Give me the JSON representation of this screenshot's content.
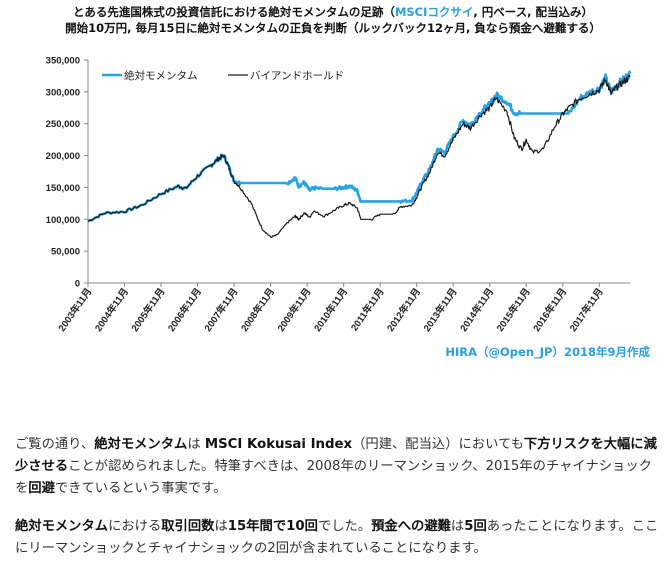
{
  "title": {
    "line1_prefix": "とある先進国株式の投資信託における絶対モメンタムの足跡（",
    "line1_accent": "MSCIコクサイ",
    "line1_suffix": ", 円ベース, 配当込み）",
    "line2": "開始10万円, 毎月15日に絶対モメンタムの正負を判断（ルックバック12ヶ月, 負なら預金へ避難する）"
  },
  "credit": "HIRA（@Open_JP）2018年9月作成",
  "chart_data": {
    "type": "line",
    "title": "とある先進国株式の投資信託における絶対モメンタムの足跡（MSCIコクサイ, 円ベース, 配当込み）",
    "subtitle": "開始10万円, 毎月15日に絶対モメンタムの正負を判断（ルックバック12ヶ月, 負なら預金へ避難する）",
    "xlabel": "",
    "ylabel": "",
    "ylim": [
      0,
      350000
    ],
    "yticks": [
      0,
      50000,
      100000,
      150000,
      200000,
      250000,
      300000,
      350000
    ],
    "ytick_labels": [
      "0",
      "50,000",
      "100,000",
      "150,000",
      "200,000",
      "250,000",
      "300,000",
      "350,000"
    ],
    "x_tick_labels": [
      "2003年11月",
      "2004年11月",
      "2005年11月",
      "2006年11月",
      "2007年11月",
      "2008年11月",
      "2009年11月",
      "2010年11月",
      "2011年11月",
      "2012年11月",
      "2013年11月",
      "2014年11月",
      "2015年11月",
      "2016年11月",
      "2017年11月"
    ],
    "x_range_years": [
      2003.83,
      2018.67
    ],
    "legend_position": "top-left",
    "grid": false,
    "series": [
      {
        "name": "絶対モメンタム",
        "color": "#29a3e6",
        "x": [
          2003.83,
          2004.3,
          2004.83,
          2005.3,
          2005.83,
          2006.3,
          2006.5,
          2006.83,
          2007.2,
          2007.4,
          2007.55,
          2007.7,
          2007.83,
          2008.0,
          2008.3,
          2008.6,
          2008.83,
          2009.3,
          2009.5,
          2009.6,
          2009.75,
          2009.9,
          2010.0,
          2010.3,
          2010.6,
          2010.83,
          2011.0,
          2011.2,
          2011.3,
          2011.6,
          2011.83,
          2012.2,
          2012.4,
          2012.7,
          2012.83,
          2013.0,
          2013.2,
          2013.4,
          2013.6,
          2013.83,
          2014.1,
          2014.3,
          2014.6,
          2014.83,
          2015.0,
          2015.3,
          2015.5,
          2015.7,
          2015.83,
          2016.0,
          2016.3,
          2016.6,
          2016.83,
          2017.0,
          2017.3,
          2017.6,
          2017.83,
          2018.0,
          2018.15,
          2018.3,
          2018.5,
          2018.67
        ],
        "values": [
          97000,
          110000,
          112000,
          122000,
          140000,
          152000,
          148000,
          168000,
          185000,
          195000,
          200000,
          180000,
          160000,
          157000,
          157000,
          157000,
          157000,
          157000,
          165000,
          152000,
          158000,
          145000,
          149000,
          148000,
          148000,
          150000,
          152000,
          145000,
          128000,
          128000,
          128000,
          128000,
          128000,
          130000,
          142000,
          162000,
          180000,
          210000,
          205000,
          230000,
          255000,
          248000,
          270000,
          280000,
          295000,
          285000,
          268000,
          266000,
          266000,
          266000,
          266000,
          266000,
          266000,
          266000,
          290000,
          300000,
          305000,
          322000,
          300000,
          310000,
          320000,
          328000
        ]
      },
      {
        "name": "バイアンドホールド",
        "color": "#1a1a1a",
        "x": [
          2003.83,
          2004.3,
          2004.83,
          2005.3,
          2005.83,
          2006.3,
          2006.5,
          2006.83,
          2007.2,
          2007.4,
          2007.55,
          2007.7,
          2007.83,
          2008.0,
          2008.3,
          2008.6,
          2008.83,
          2009.0,
          2009.3,
          2009.5,
          2009.6,
          2009.75,
          2009.9,
          2010.0,
          2010.3,
          2010.6,
          2010.83,
          2011.0,
          2011.2,
          2011.3,
          2011.6,
          2011.83,
          2012.2,
          2012.4,
          2012.7,
          2012.83,
          2013.0,
          2013.2,
          2013.4,
          2013.6,
          2013.83,
          2014.1,
          2014.3,
          2014.6,
          2014.83,
          2015.0,
          2015.3,
          2015.5,
          2015.7,
          2015.83,
          2016.0,
          2016.3,
          2016.6,
          2016.83,
          2017.0,
          2017.3,
          2017.6,
          2017.83,
          2018.0,
          2018.15,
          2018.3,
          2018.5,
          2018.67
        ],
        "values": [
          97000,
          110000,
          112000,
          122000,
          140000,
          152000,
          148000,
          168000,
          185000,
          195000,
          200000,
          180000,
          160000,
          150000,
          125000,
          85000,
          72000,
          75000,
          95000,
          105000,
          100000,
          110000,
          103000,
          113000,
          105000,
          115000,
          122000,
          125000,
          118000,
          100000,
          100000,
          108000,
          108000,
          120000,
          122000,
          135000,
          155000,
          175000,
          205000,
          200000,
          225000,
          250000,
          243000,
          265000,
          275000,
          290000,
          270000,
          228000,
          210000,
          225000,
          205000,
          210000,
          245000,
          265000,
          275000,
          290000,
          298000,
          303000,
          320000,
          297000,
          307000,
          316000,
          323000
        ]
      }
    ]
  },
  "paragraphs": {
    "p1": [
      {
        "t": "ご覧の通り、",
        "b": false
      },
      {
        "t": "絶対モメンタム",
        "b": true
      },
      {
        "t": "は ",
        "b": false
      },
      {
        "t": "MSCI Kokusai Index",
        "b": true
      },
      {
        "t": "（円建、配当込）においても",
        "b": false
      },
      {
        "t": "下方リスクを大幅に減少させる",
        "b": true
      },
      {
        "t": "ことが認められました。特筆すべきは、2008年のリーマンショック、2015年のチャイナショックを",
        "b": false
      },
      {
        "t": "回避",
        "b": true
      },
      {
        "t": "できているという事実です。",
        "b": false
      }
    ],
    "p2": [
      {
        "t": "絶対モメンタム",
        "b": true
      },
      {
        "t": "における",
        "b": false
      },
      {
        "t": "取引回数",
        "b": true
      },
      {
        "t": "は",
        "b": false
      },
      {
        "t": "15年間で10回",
        "b": true
      },
      {
        "t": "でした。",
        "b": false
      },
      {
        "t": "預金への避難",
        "b": true
      },
      {
        "t": "は",
        "b": false
      },
      {
        "t": "5回",
        "b": true
      },
      {
        "t": "あったことになります。ここにリーマンショックとチャイナショックの2回が含まれていることになります。",
        "b": false
      }
    ]
  }
}
